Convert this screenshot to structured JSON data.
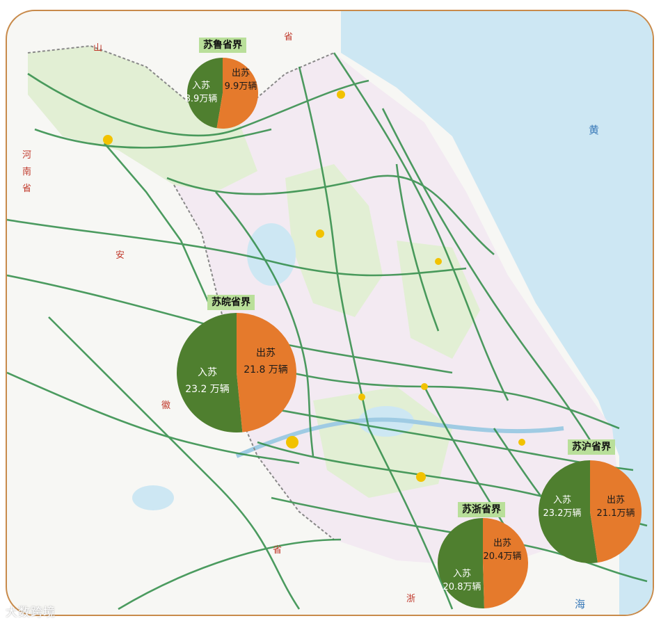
{
  "borders": [
    {
      "name": "苏鲁省界",
      "in_label": "入苏",
      "in_value": "8.9万辆",
      "out_label": "出苏",
      "out_value": "9.9万辆",
      "in": 8.9,
      "out": 9.9
    },
    {
      "name": "苏皖省界",
      "in_label": "入苏",
      "in_value": "23.2 万辆",
      "out_label": "出苏",
      "out_value": "21.8 万辆",
      "in": 23.2,
      "out": 21.8
    },
    {
      "name": "苏沪省界",
      "in_label": "入苏",
      "in_value": "23.2万辆",
      "out_label": "出苏",
      "out_value": "21.1万辆",
      "in": 23.2,
      "out": 21.1
    },
    {
      "name": "苏浙省界",
      "in_label": "入苏",
      "in_value": "20.8万辆",
      "out_label": "出苏",
      "out_value": "20.4万辆",
      "in": 20.8,
      "out": 20.4
    }
  ],
  "map_labels": {
    "shan": "山",
    "sheng_top": "省",
    "he": "河",
    "nan": "南",
    "sheng_left": "省",
    "an": "安",
    "hui": "徽",
    "sheng_bottom": "省",
    "zhe": "浙",
    "huang": "黄",
    "hai": "海"
  },
  "watermark": "大数跨境",
  "colors": {
    "in": "#4f7f2f",
    "out": "#e57a2c",
    "tag": "#b9df9a",
    "road": "#2e8b46",
    "sea": "#cde7f3"
  }
}
